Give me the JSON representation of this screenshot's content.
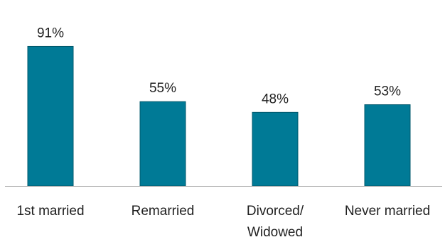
{
  "chart_data": {
    "type": "bar",
    "categories": [
      "1st married",
      "Remarried",
      "Divorced/\nWidowed",
      "Never married"
    ],
    "values": [
      91,
      55,
      48,
      53
    ],
    "data_labels": [
      "91%",
      "55%",
      "48%",
      "53%"
    ],
    "ylim": [
      0,
      100
    ],
    "grid": false,
    "legend": "none",
    "bar_color": "#007A96",
    "bar_edge_color": "#00586C",
    "axis_color": "#A6A6A6"
  }
}
